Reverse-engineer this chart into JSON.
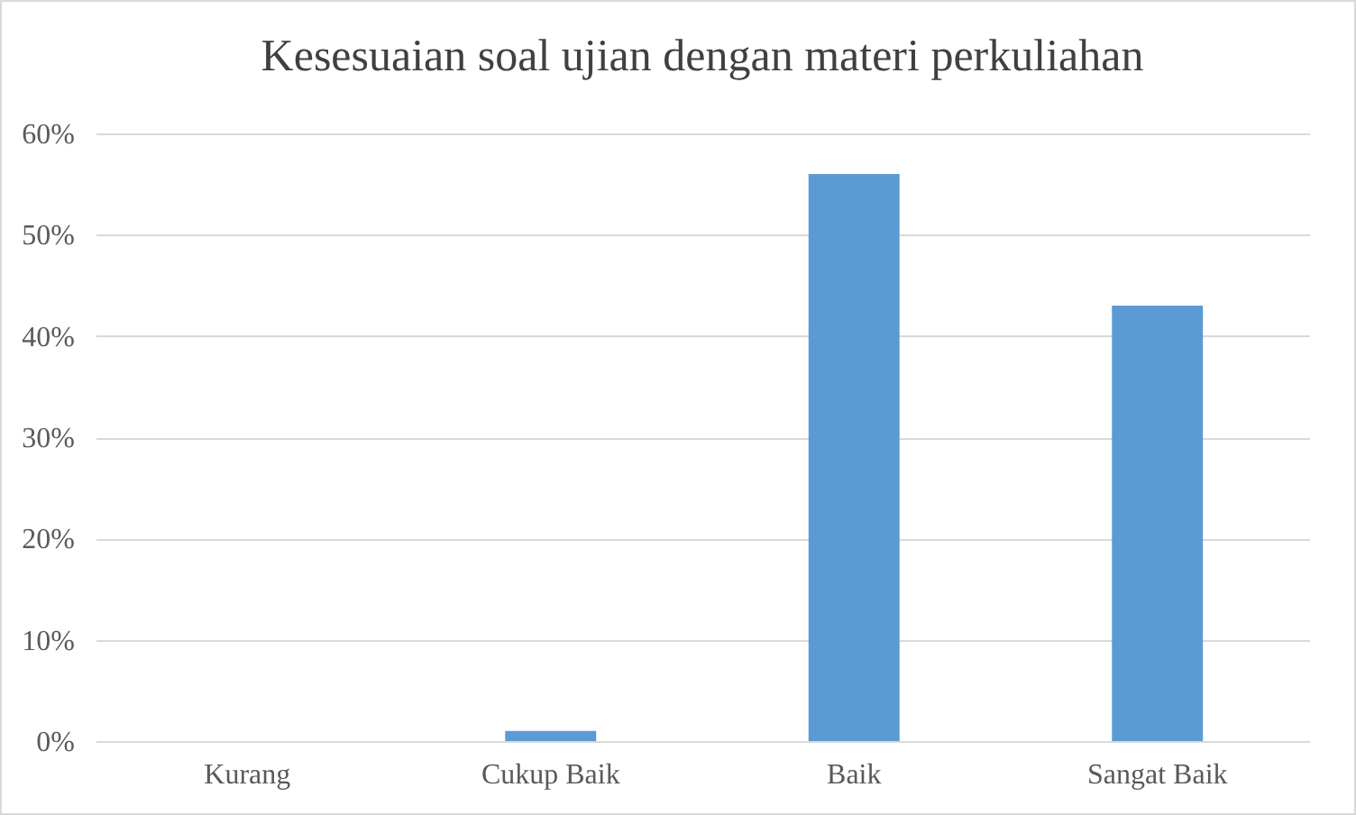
{
  "chart_data": {
    "type": "bar",
    "title": "Kesesuaian soal ujian dengan materi perkuliahan",
    "categories": [
      "Kurang",
      "Cukup Baik",
      "Baik",
      "Sangat Baik"
    ],
    "values": [
      0,
      1,
      56,
      43
    ],
    "color": "#5b9bd5",
    "ylim": [
      0,
      60
    ],
    "yticks": [
      {
        "value": 0,
        "label": "0%"
      },
      {
        "value": 10,
        "label": "10%"
      },
      {
        "value": 20,
        "label": "20%"
      },
      {
        "value": 30,
        "label": "30%"
      },
      {
        "value": 40,
        "label": "40%"
      },
      {
        "value": 50,
        "label": "50%"
      },
      {
        "value": 60,
        "label": "60%"
      }
    ],
    "grid": "y"
  }
}
